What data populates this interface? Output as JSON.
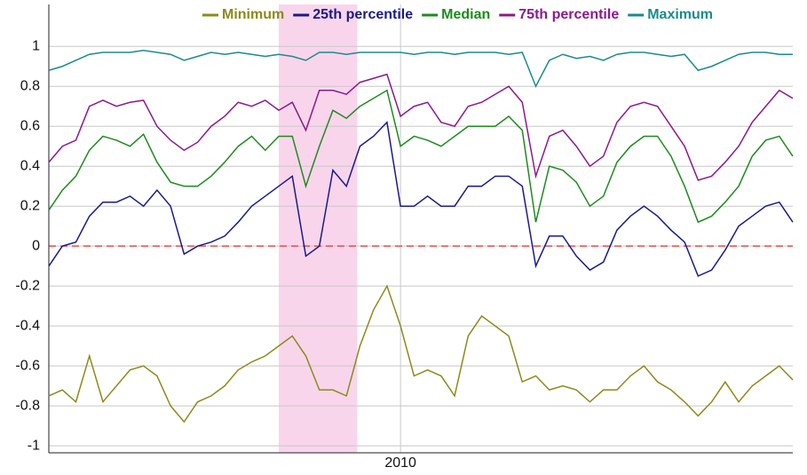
{
  "chart_data": {
    "type": "line",
    "x": [
      2003.5,
      2003.75,
      2004,
      2004.25,
      2004.5,
      2004.75,
      2005,
      2005.25,
      2005.5,
      2005.75,
      2006,
      2006.25,
      2006.5,
      2006.75,
      2007,
      2007.25,
      2007.5,
      2007.75,
      2008,
      2008.25,
      2008.5,
      2008.75,
      2009,
      2009.25,
      2009.5,
      2009.75,
      2010,
      2010.25,
      2010.5,
      2010.75,
      2011,
      2011.25,
      2011.5,
      2011.75,
      2012,
      2012.25,
      2012.5,
      2012.75,
      2013,
      2013.25,
      2013.5,
      2013.75,
      2014,
      2014.25,
      2014.5,
      2014.75,
      2015,
      2015.25,
      2015.5,
      2015.75,
      2016,
      2016.25,
      2016.5,
      2016.75,
      2017,
      2017.25
    ],
    "series": [
      {
        "name": "Minimum",
        "color": "#8b8b1a",
        "values": [
          -0.75,
          -0.72,
          -0.78,
          -0.55,
          -0.78,
          -0.7,
          -0.62,
          -0.6,
          -0.65,
          -0.8,
          -0.88,
          -0.78,
          -0.75,
          -0.7,
          -0.62,
          -0.58,
          -0.55,
          -0.5,
          -0.45,
          -0.55,
          -0.72,
          -0.72,
          -0.75,
          -0.5,
          -0.32,
          -0.2,
          -0.4,
          -0.65,
          -0.62,
          -0.65,
          -0.75,
          -0.45,
          -0.35,
          -0.4,
          -0.45,
          -0.68,
          -0.65,
          -0.72,
          -0.7,
          -0.72,
          -0.78,
          -0.72,
          -0.72,
          -0.65,
          -0.6,
          -0.68,
          -0.72,
          -0.78,
          -0.85,
          -0.78,
          -0.68,
          -0.78,
          -0.7,
          -0.65,
          -0.6,
          -0.67
        ]
      },
      {
        "name": "25th percentile",
        "color": "#1a1a8b",
        "values": [
          -0.1,
          0,
          0.02,
          0.15,
          0.22,
          0.22,
          0.25,
          0.2,
          0.28,
          0.2,
          -0.04,
          0,
          0.02,
          0.05,
          0.12,
          0.2,
          0.25,
          0.3,
          0.35,
          -0.05,
          0,
          0.38,
          0.3,
          0.5,
          0.55,
          0.62,
          0.2,
          0.2,
          0.25,
          0.2,
          0.2,
          0.3,
          0.3,
          0.35,
          0.35,
          0.3,
          -0.1,
          0.05,
          0.05,
          -0.05,
          -0.12,
          -0.08,
          0.08,
          0.15,
          0.2,
          0.15,
          0.08,
          0.02,
          -0.15,
          -0.12,
          -0.02,
          0.1,
          0.15,
          0.2,
          0.22,
          0.12
        ]
      },
      {
        "name": "Median",
        "color": "#1e8b1e",
        "values": [
          0.18,
          0.28,
          0.35,
          0.48,
          0.55,
          0.53,
          0.5,
          0.56,
          0.42,
          0.32,
          0.3,
          0.3,
          0.35,
          0.42,
          0.5,
          0.55,
          0.48,
          0.55,
          0.55,
          0.3,
          0.5,
          0.68,
          0.64,
          0.7,
          0.74,
          0.78,
          0.5,
          0.55,
          0.53,
          0.5,
          0.55,
          0.6,
          0.6,
          0.6,
          0.65,
          0.58,
          0.12,
          0.4,
          0.38,
          0.32,
          0.2,
          0.25,
          0.42,
          0.5,
          0.55,
          0.55,
          0.45,
          0.3,
          0.12,
          0.15,
          0.22,
          0.3,
          0.45,
          0.53,
          0.55,
          0.45
        ]
      },
      {
        "name": "75th percentile",
        "color": "#8b1a8b",
        "values": [
          0.42,
          0.5,
          0.53,
          0.7,
          0.73,
          0.7,
          0.72,
          0.73,
          0.6,
          0.53,
          0.48,
          0.52,
          0.6,
          0.65,
          0.72,
          0.7,
          0.73,
          0.68,
          0.72,
          0.58,
          0.78,
          0.78,
          0.76,
          0.82,
          0.84,
          0.86,
          0.65,
          0.7,
          0.72,
          0.62,
          0.6,
          0.7,
          0.72,
          0.76,
          0.8,
          0.72,
          0.35,
          0.55,
          0.58,
          0.5,
          0.4,
          0.45,
          0.62,
          0.7,
          0.72,
          0.7,
          0.6,
          0.5,
          0.33,
          0.35,
          0.42,
          0.5,
          0.62,
          0.7,
          0.78,
          0.74
        ]
      },
      {
        "name": "Maximum",
        "color": "#1a8b8b",
        "values": [
          0.88,
          0.9,
          0.93,
          0.96,
          0.97,
          0.97,
          0.97,
          0.98,
          0.97,
          0.96,
          0.93,
          0.95,
          0.97,
          0.96,
          0.97,
          0.96,
          0.95,
          0.96,
          0.95,
          0.93,
          0.97,
          0.97,
          0.96,
          0.97,
          0.97,
          0.97,
          0.97,
          0.96,
          0.97,
          0.97,
          0.96,
          0.97,
          0.97,
          0.97,
          0.96,
          0.97,
          0.8,
          0.93,
          0.96,
          0.94,
          0.95,
          0.93,
          0.96,
          0.97,
          0.97,
          0.96,
          0.95,
          0.96,
          0.88,
          0.9,
          0.93,
          0.96,
          0.97,
          0.97,
          0.96,
          0.96
        ]
      }
    ],
    "xlim": [
      2003.5,
      2017.25
    ],
    "xticks": [
      2010
    ],
    "ylim": [
      -1.035,
      1.21
    ],
    "yticks": [
      1,
      0.8,
      0.6,
      0.4,
      0.2,
      0,
      -0.2,
      -0.4,
      -0.6,
      -0.8,
      -1
    ],
    "grid": true,
    "shaded_region": {
      "x": [
        2007.75,
        2009.2
      ],
      "color": "#f9d5ec"
    },
    "reference_line": {
      "y": 0,
      "color": "#d9534f"
    },
    "legend_position": "top"
  }
}
